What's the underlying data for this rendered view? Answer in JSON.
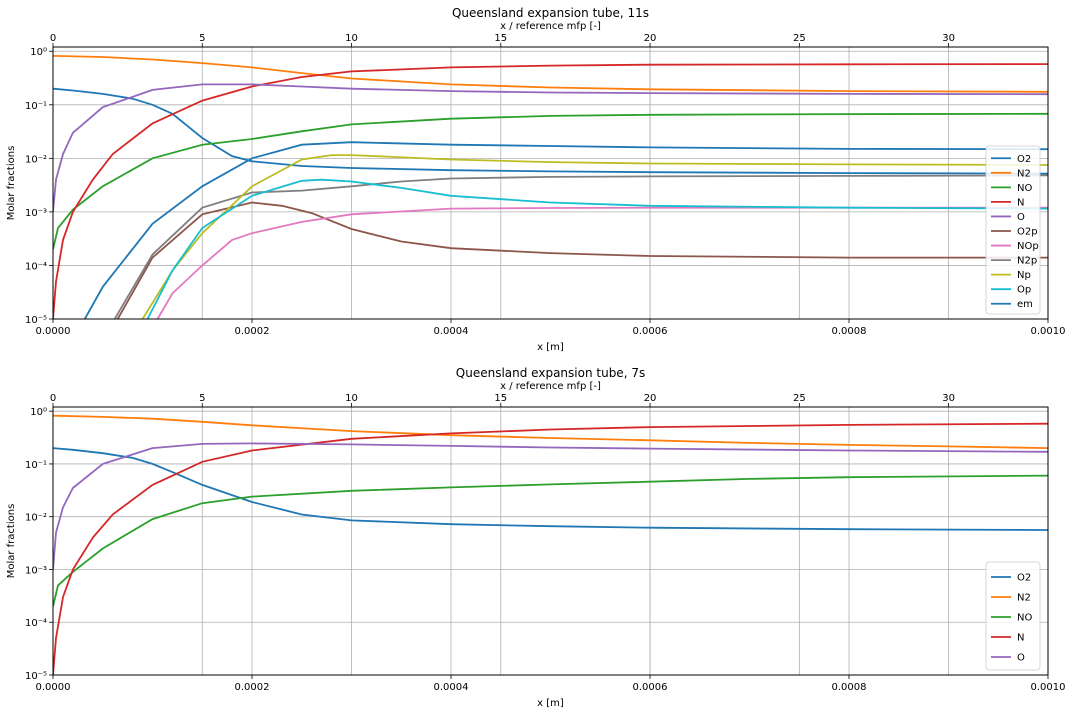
{
  "chart_data": [
    {
      "type": "line",
      "title": "Queensland expansion tube, 11s",
      "xlabel": "x [m]",
      "ylabel": "Molar fractions",
      "top_xlabel": "x / reference mfp [-]",
      "xlim": [
        0,
        0.001
      ],
      "ylim": [
        1e-05,
        1.2
      ],
      "yscale": "log",
      "top_xlim": [
        0,
        33.33
      ],
      "grid": true,
      "legend_position": "right",
      "x_ticks": [
        "0.0000",
        "0.0002",
        "0.0004",
        "0.0006",
        "0.0008",
        "0.0010"
      ],
      "top_ticks": [
        "0",
        "5",
        "10",
        "15",
        "20",
        "25",
        "30"
      ],
      "y_ticks": [
        "10⁻⁵",
        "10⁻⁴",
        "10⁻³",
        "10⁻²",
        "10⁻¹",
        "10⁰"
      ],
      "series": [
        {
          "name": "O2",
          "color": "#1f77b4",
          "x": [
            0,
            2e-05,
            5e-05,
            8e-05,
            0.0001,
            0.00012,
            0.00015,
            0.00018,
            0.0002,
            0.00025,
            0.0003,
            0.0004,
            0.0005,
            0.0006,
            0.0008,
            0.001
          ],
          "y": [
            0.2,
            0.185,
            0.16,
            0.13,
            0.1,
            0.068,
            0.024,
            0.011,
            0.0088,
            0.0072,
            0.0066,
            0.006,
            0.0057,
            0.0055,
            0.0053,
            0.0052
          ]
        },
        {
          "name": "N2",
          "color": "#ff7f0e",
          "x": [
            0,
            5e-05,
            0.0001,
            0.00015,
            0.0002,
            0.00025,
            0.0003,
            0.0004,
            0.0005,
            0.0006,
            0.0008,
            0.001
          ],
          "y": [
            0.82,
            0.78,
            0.7,
            0.6,
            0.5,
            0.39,
            0.31,
            0.24,
            0.21,
            0.195,
            0.18,
            0.175
          ]
        },
        {
          "name": "NO",
          "color": "#2ca02c",
          "x": [
            0,
            5e-06,
            2e-05,
            5e-05,
            0.0001,
            0.00015,
            0.0002,
            0.00025,
            0.0003,
            0.0004,
            0.0005,
            0.0006,
            0.0008,
            0.001
          ],
          "y": [
            0.0002,
            0.0005,
            0.0011,
            0.003,
            0.01,
            0.018,
            0.023,
            0.032,
            0.043,
            0.055,
            0.062,
            0.065,
            0.067,
            0.068
          ]
        },
        {
          "name": "N",
          "color": "#d62728",
          "x": [
            0,
            3e-06,
            1e-05,
            2e-05,
            4e-05,
            6e-05,
            0.0001,
            0.00015,
            0.0002,
            0.00025,
            0.0003,
            0.0004,
            0.0005,
            0.0006,
            0.0008,
            0.001
          ],
          "y": [
            1e-05,
            5e-05,
            0.0003,
            0.001,
            0.004,
            0.012,
            0.045,
            0.12,
            0.22,
            0.33,
            0.42,
            0.5,
            0.54,
            0.56,
            0.57,
            0.575
          ]
        },
        {
          "name": "O",
          "color": "#9467bd",
          "x": [
            0,
            3e-06,
            1e-05,
            2e-05,
            5e-05,
            0.0001,
            0.00015,
            0.0002,
            0.00025,
            0.0003,
            0.0004,
            0.0005,
            0.0006,
            0.0008,
            0.001
          ],
          "y": [
            0.001,
            0.004,
            0.012,
            0.03,
            0.09,
            0.19,
            0.24,
            0.24,
            0.22,
            0.2,
            0.18,
            0.17,
            0.165,
            0.16,
            0.158
          ]
        },
        {
          "name": "O2p",
          "color": "#8c564b",
          "x": [
            6.5e-05,
            0.0001,
            0.00015,
            0.0002,
            0.00023,
            0.00026,
            0.0003,
            0.00035,
            0.0004,
            0.0005,
            0.0006,
            0.0008,
            0.001
          ],
          "y": [
            1e-05,
            0.00014,
            0.0009,
            0.0015,
            0.0013,
            0.00095,
            0.00048,
            0.00028,
            0.00021,
            0.00017,
            0.00015,
            0.00014,
            0.00014
          ]
        },
        {
          "name": "NOp",
          "color": "#e377c2",
          "x": [
            0.000105,
            0.00012,
            0.00015,
            0.00018,
            0.0002,
            0.00025,
            0.0003,
            0.0004,
            0.0005,
            0.0006,
            0.0008,
            0.001
          ],
          "y": [
            1e-05,
            3e-05,
            0.0001,
            0.0003,
            0.0004,
            0.00065,
            0.0009,
            0.00115,
            0.00118,
            0.0012,
            0.0012,
            0.0012
          ]
        },
        {
          "name": "N2p",
          "color": "#7f7f7f",
          "x": [
            6.2e-05,
            0.0001,
            0.00015,
            0.0002,
            0.00025,
            0.0003,
            0.00035,
            0.0004,
            0.0005,
            0.0006,
            0.0008,
            0.001
          ],
          "y": [
            1e-05,
            0.00016,
            0.0012,
            0.0023,
            0.0025,
            0.003,
            0.0037,
            0.0042,
            0.0045,
            0.0046,
            0.0047,
            0.0048
          ]
        },
        {
          "name": "Np",
          "color": "#bcbd22",
          "x": [
            9e-05,
            0.00012,
            0.00015,
            0.0002,
            0.00025,
            0.00028,
            0.0003,
            0.0004,
            0.0005,
            0.0006,
            0.0008,
            0.001
          ],
          "y": [
            1e-05,
            8e-05,
            0.0004,
            0.003,
            0.0095,
            0.0115,
            0.0115,
            0.0095,
            0.0085,
            0.008,
            0.0077,
            0.0075
          ]
        },
        {
          "name": "Op",
          "color": "#17becf",
          "x": [
            9.5e-05,
            0.00012,
            0.00015,
            0.0002,
            0.00025,
            0.00027,
            0.0003,
            0.00035,
            0.0004,
            0.0005,
            0.0006,
            0.0008,
            0.001
          ],
          "y": [
            1e-05,
            8e-05,
            0.0005,
            0.002,
            0.0038,
            0.004,
            0.0037,
            0.0028,
            0.002,
            0.0015,
            0.0013,
            0.0012,
            0.00115
          ]
        },
        {
          "name": "em",
          "color": "#1f77b4",
          "x": [
            3.2e-05,
            5e-05,
            0.0001,
            0.00015,
            0.0002,
            0.00025,
            0.0003,
            0.0004,
            0.0005,
            0.0006,
            0.0008,
            0.001
          ],
          "y": [
            1e-05,
            4e-05,
            0.0006,
            0.003,
            0.01,
            0.018,
            0.02,
            0.018,
            0.017,
            0.016,
            0.015,
            0.0148
          ]
        }
      ]
    },
    {
      "type": "line",
      "title": "Queensland expansion tube, 7s",
      "xlabel": "x [m]",
      "ylabel": "Molar fractions",
      "top_xlabel": "x / reference mfp [-]",
      "xlim": [
        0,
        0.001
      ],
      "ylim": [
        1e-05,
        1.2
      ],
      "yscale": "log",
      "top_xlim": [
        0,
        33.33
      ],
      "grid": true,
      "legend_position": "lower right",
      "x_ticks": [
        "0.0000",
        "0.0002",
        "0.0004",
        "0.0006",
        "0.0008",
        "0.0010"
      ],
      "top_ticks": [
        "0",
        "5",
        "10",
        "15",
        "20",
        "25",
        "30"
      ],
      "y_ticks": [
        "10⁻⁵",
        "10⁻⁴",
        "10⁻³",
        "10⁻²",
        "10⁻¹",
        "10⁰"
      ],
      "series": [
        {
          "name": "O2",
          "color": "#1f77b4",
          "x": [
            0,
            2e-05,
            5e-05,
            8e-05,
            0.0001,
            0.00012,
            0.00015,
            0.0002,
            0.00025,
            0.0003,
            0.0004,
            0.0005,
            0.0006,
            0.0008,
            0.001
          ],
          "y": [
            0.2,
            0.185,
            0.16,
            0.13,
            0.1,
            0.07,
            0.04,
            0.019,
            0.011,
            0.0085,
            0.0072,
            0.0066,
            0.0062,
            0.0058,
            0.0056
          ]
        },
        {
          "name": "N2",
          "color": "#ff7f0e",
          "x": [
            0,
            5e-05,
            0.0001,
            0.00015,
            0.0002,
            0.0003,
            0.0004,
            0.0005,
            0.0006,
            0.0007,
            0.0008,
            0.0009,
            0.001
          ],
          "y": [
            0.82,
            0.78,
            0.72,
            0.63,
            0.54,
            0.42,
            0.35,
            0.31,
            0.28,
            0.25,
            0.23,
            0.215,
            0.2
          ]
        },
        {
          "name": "NO",
          "color": "#2ca02c",
          "x": [
            0,
            5e-06,
            2e-05,
            5e-05,
            0.0001,
            0.00015,
            0.0002,
            0.0003,
            0.0004,
            0.0005,
            0.0006,
            0.0007,
            0.0008,
            0.001
          ],
          "y": [
            0.0002,
            0.0005,
            0.0009,
            0.0025,
            0.009,
            0.018,
            0.024,
            0.031,
            0.036,
            0.041,
            0.046,
            0.052,
            0.056,
            0.06
          ]
        },
        {
          "name": "N",
          "color": "#d62728",
          "x": [
            0,
            3e-06,
            1e-05,
            2e-05,
            4e-05,
            6e-05,
            0.0001,
            0.00015,
            0.0002,
            0.0003,
            0.0004,
            0.0005,
            0.0006,
            0.0008,
            0.001
          ],
          "y": [
            1e-05,
            5e-05,
            0.0003,
            0.001,
            0.004,
            0.011,
            0.04,
            0.11,
            0.18,
            0.3,
            0.38,
            0.45,
            0.5,
            0.55,
            0.58
          ]
        },
        {
          "name": "O",
          "color": "#9467bd",
          "x": [
            0,
            3e-06,
            1e-05,
            2e-05,
            5e-05,
            0.0001,
            0.00015,
            0.0002,
            0.0003,
            0.0004,
            0.0005,
            0.0006,
            0.0008,
            0.001
          ],
          "y": [
            0.001,
            0.005,
            0.015,
            0.035,
            0.1,
            0.2,
            0.24,
            0.245,
            0.235,
            0.22,
            0.205,
            0.195,
            0.18,
            0.17
          ]
        }
      ]
    }
  ]
}
